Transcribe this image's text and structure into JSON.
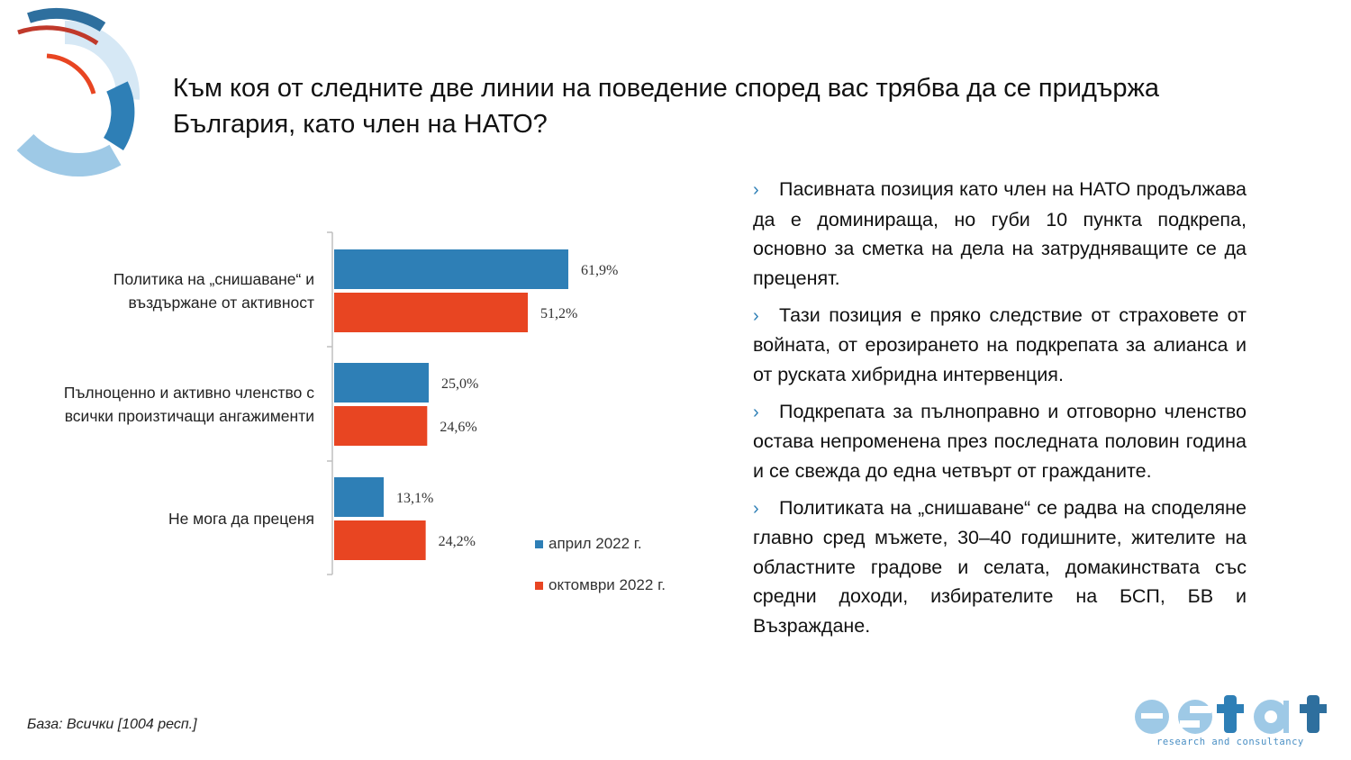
{
  "title": "Към коя от следните две линии на поведение според вас трябва да се придържа България, като член на НАТО?",
  "chart_data": {
    "type": "bar",
    "orientation": "horizontal",
    "categories": [
      [
        "Политика на „снишаване“ и",
        "въздържане от активност"
      ],
      [
        "Пълноценно и активно членство с",
        "всички произтичащи ангажименти"
      ],
      [
        "Не мога да преценя"
      ]
    ],
    "series": [
      {
        "name": "април 2022 г.",
        "values": [
          61.9,
          25.0,
          13.1
        ],
        "labels": [
          "61,9%",
          "25,0%",
          "13,1%"
        ],
        "color": "#2e7fb6"
      },
      {
        "name": "октомври 2022 г.",
        "values": [
          51.2,
          24.6,
          24.2
        ],
        "labels": [
          "51,2%",
          "24,6%",
          "24,2%"
        ],
        "color": "#e84522"
      }
    ],
    "xlim": [
      0,
      100
    ],
    "legend_position": "bottom-right",
    "grid": false
  },
  "bullets": [
    "Пасивната позиция като член на НАТО продължава да е доминираща, но губи 10 пункта подкрепа, основно за сметка на дела на затрудняващите се да преценят.",
    "Тази позиция е пряко следствие от страховете от войната, от ерозирането на подкрепата за алианса и от руската хибридна интервенция.",
    "Подкрепата за пълноправно и отговорно членство остава непроменена през последната половин година и се свежда до една четвърт от гражданите.",
    "Политиката на „снишаване“ се радва на споделяне главно сред мъжете, 30–40 годишните, жителите на областните градове и селата, домакинствата със средни доходи, избирателите на БСП, БВ и Възраждане."
  ],
  "footnote": "База: Всички [1004 респ.]",
  "logo": {
    "name": "estat",
    "tagline": "research and consultancy"
  },
  "colors": {
    "accent_blue": "#2e7fb6",
    "accent_red": "#e84522",
    "light_blue": "#9ec9e6"
  }
}
